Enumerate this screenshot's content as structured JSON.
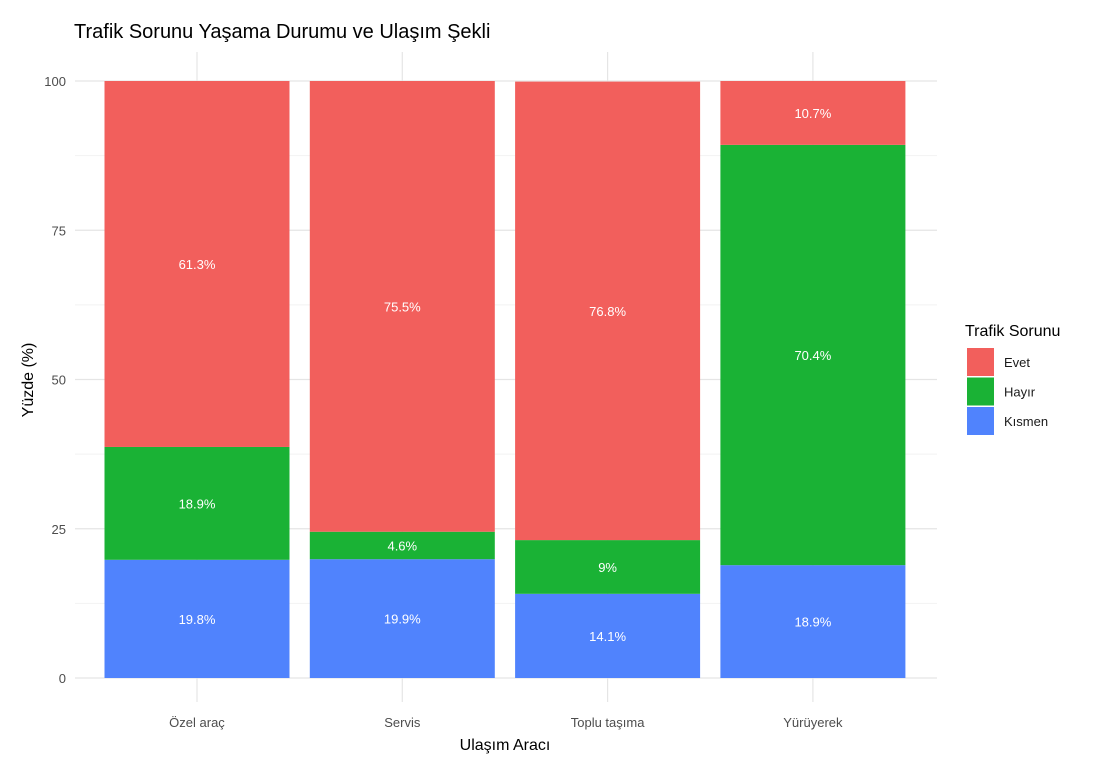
{
  "chart_data": {
    "type": "bar",
    "stacked": true,
    "title": "Trafik Sorunu Yaşama Durumu ve Ulaşım Şekli",
    "xlabel": "Ulaşım Aracı",
    "ylabel": "Yüzde (%)",
    "ylim": [
      0,
      100
    ],
    "yticks": [
      0,
      25,
      50,
      75,
      100
    ],
    "grid": true,
    "categories": [
      "Özel araç",
      "Servis",
      "Toplu taşıma",
      "Yürüyerek"
    ],
    "legend": {
      "title": "Trafik Sorunu",
      "placement": "right"
    },
    "series": [
      {
        "name": "Kısmen",
        "color": "#5083FD",
        "values": [
          19.8,
          19.9,
          14.1,
          18.9
        ],
        "labels": [
          "19.8%",
          "19.9%",
          "14.1%",
          "18.9%"
        ]
      },
      {
        "name": "Hayır",
        "color": "#1AB235",
        "values": [
          18.9,
          4.6,
          9,
          70.4
        ],
        "labels": [
          "18.9%",
          "4.6%",
          "9%",
          "70.4%"
        ]
      },
      {
        "name": "Evet",
        "color": "#F25F5C",
        "values": [
          61.3,
          75.5,
          76.8,
          10.7
        ],
        "labels": [
          "61.3%",
          "75.5%",
          "76.8%",
          "10.7%"
        ]
      }
    ],
    "legend_order": [
      "Evet",
      "Hayır",
      "Kısmen"
    ]
  }
}
